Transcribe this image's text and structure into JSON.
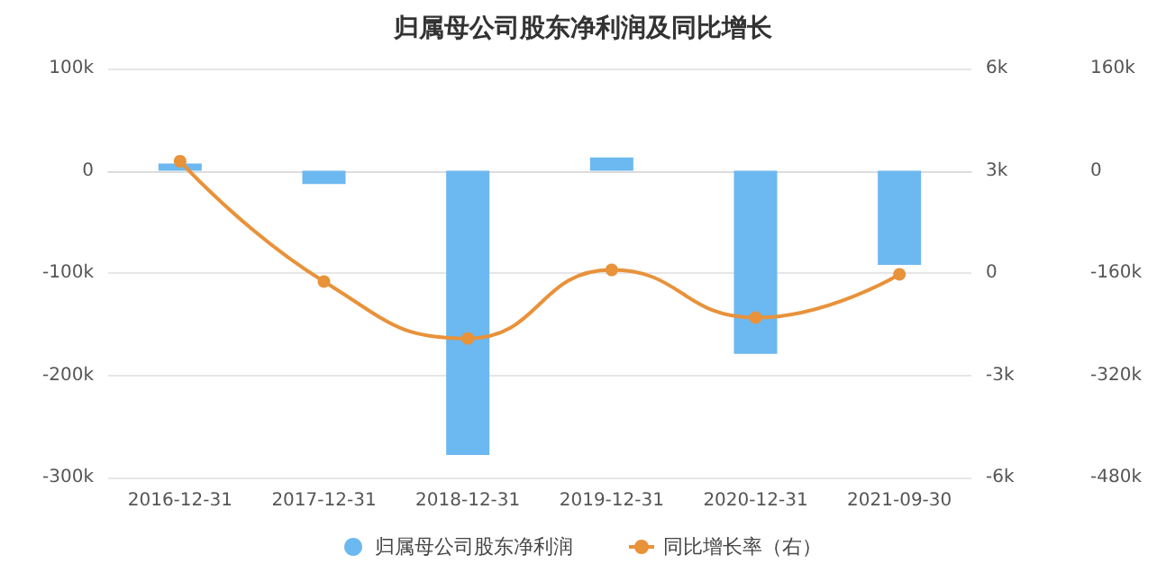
{
  "chart_data": {
    "type": "bar",
    "title": "归属母公司股东净利润及同比增长",
    "categories": [
      "2016-12-31",
      "2017-12-31",
      "2018-12-31",
      "2019-12-31",
      "2020-12-31",
      "2021-09-30"
    ],
    "series": [
      {
        "name": "归属母公司股东净利润",
        "color": "#6cb8f0",
        "values": [
          7000,
          -13000,
          -278000,
          13000,
          -179000,
          -92000
        ]
      },
      {
        "name": "同比增长率（右）",
        "type": "line",
        "axis": "y2",
        "color": "#e8923a",
        "values": [
          3280,
          -250,
          -1920,
          90,
          -1310,
          -40
        ]
      }
    ],
    "ylim": [
      -300000,
      100000
    ],
    "yticks": [
      {
        "value": -300000,
        "label": "-300k"
      },
      {
        "value": -200000,
        "label": "-200k"
      },
      {
        "value": -100000,
        "label": "-100k"
      },
      0,
      {
        "value": 100000,
        "label": "100k"
      }
    ],
    "y2lim": [
      -6000,
      6000
    ],
    "y2ticks": [
      {
        "value": -6000,
        "label": "-6k"
      },
      {
        "value": -3000,
        "label": "-3k"
      },
      0,
      {
        "value": 3000,
        "label": "3k"
      },
      {
        "value": 6000,
        "label": "6k"
      }
    ],
    "y3lim": [
      -480000,
      160000
    ],
    "y3ticks": [
      {
        "value": -480000,
        "label": "-480k"
      },
      {
        "value": -320000,
        "label": "-320k"
      },
      {
        "value": -160000,
        "label": "-160k"
      },
      0,
      {
        "value": 160000,
        "label": "160k"
      }
    ],
    "grid": "y",
    "legend": "bottom",
    "marker": "circle"
  }
}
